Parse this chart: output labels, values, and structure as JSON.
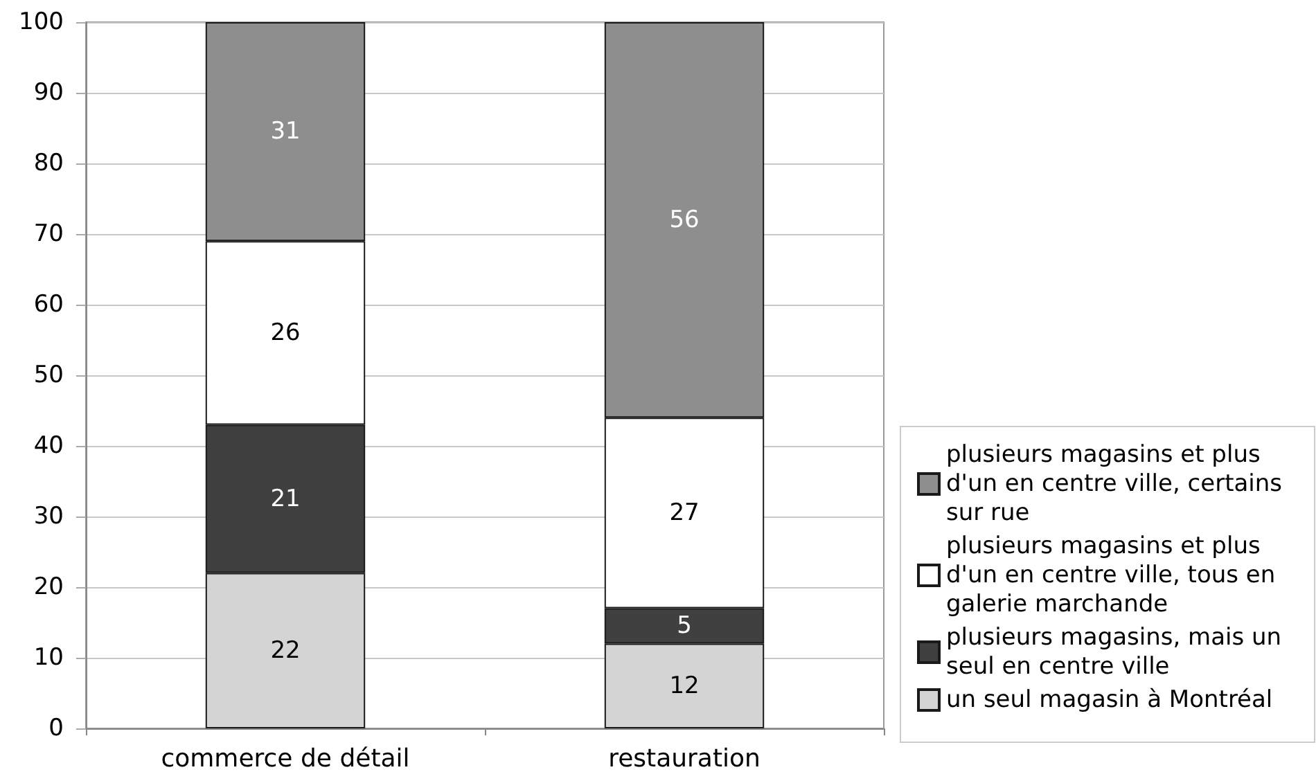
{
  "chart_data": {
    "type": "bar",
    "stacked": true,
    "categories": [
      "commerce de détail",
      "restauration"
    ],
    "series": [
      {
        "name": "un seul magasin à Montréal",
        "color": "#d4d4d4",
        "values": [
          22,
          12
        ]
      },
      {
        "name": "plusieurs magasins, mais un seul en centre ville",
        "color": "#404040",
        "values": [
          21,
          5
        ]
      },
      {
        "name": "plusieurs magasins et plus d'un en centre ville, tous en galerie marchande",
        "color": "#ffffff",
        "values": [
          26,
          27
        ]
      },
      {
        "name": "plusieurs magasins et plus d'un en centre ville, certains sur rue",
        "color": "#8e8e8e",
        "values": [
          31,
          56
        ]
      }
    ],
    "ylim": [
      0,
      100
    ],
    "yticks": [
      0,
      10,
      20,
      30,
      40,
      50,
      60,
      70,
      80,
      90,
      100
    ],
    "grid": "y",
    "legend": "right",
    "data_labels": true
  }
}
